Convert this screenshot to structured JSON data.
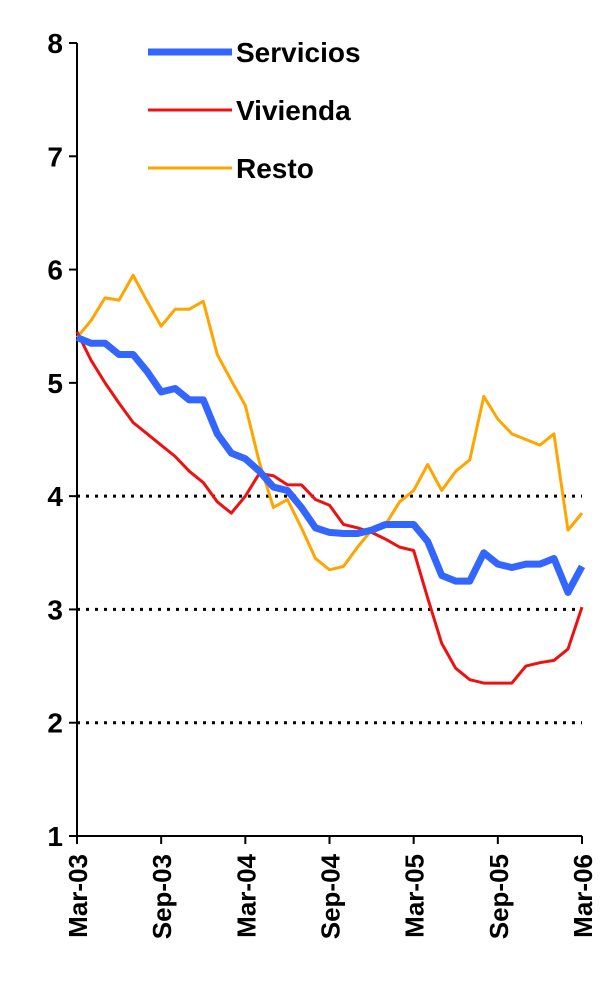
{
  "chart_data": {
    "type": "line",
    "categories": [
      "Mar-03",
      null,
      null,
      null,
      null,
      null,
      "Sep-03",
      null,
      null,
      null,
      null,
      null,
      "Mar-04",
      null,
      null,
      null,
      null,
      null,
      "Sep-04",
      null,
      null,
      null,
      null,
      null,
      "Mar-05",
      null,
      null,
      null,
      null,
      null,
      "Sep-05",
      null,
      null,
      null,
      null,
      null,
      "Mar-06"
    ],
    "series": [
      {
        "name": "Servicios",
        "color": "#3366ff",
        "width": 7,
        "values": [
          5.4,
          5.35,
          5.35,
          5.25,
          5.25,
          5.1,
          4.92,
          4.95,
          4.85,
          4.85,
          4.55,
          4.38,
          4.33,
          4.22,
          4.08,
          4.05,
          3.9,
          3.72,
          3.68,
          3.67,
          3.67,
          3.7,
          3.75,
          3.75,
          3.75,
          3.6,
          3.3,
          3.25,
          3.25,
          3.5,
          3.4,
          3.37,
          3.4,
          3.4,
          3.45,
          3.15,
          3.38
        ]
      },
      {
        "name": "Vivienda",
        "color": "#ee1111",
        "width": 3,
        "values": [
          5.45,
          5.2,
          5.0,
          4.82,
          4.65,
          4.55,
          4.45,
          4.35,
          4.22,
          4.12,
          3.95,
          3.85,
          4.0,
          4.2,
          4.18,
          4.1,
          4.1,
          3.97,
          3.92,
          3.75,
          3.72,
          3.68,
          3.62,
          3.55,
          3.52,
          3.1,
          2.7,
          2.48,
          2.38,
          2.35,
          2.35,
          2.35,
          2.5,
          2.53,
          2.55,
          2.65,
          3.02
        ]
      },
      {
        "name": "Resto",
        "color": "#ffa500",
        "width": 3,
        "values": [
          5.4,
          5.55,
          5.75,
          5.73,
          5.95,
          5.72,
          5.5,
          5.65,
          5.65,
          5.72,
          5.25,
          5.02,
          4.8,
          4.3,
          3.9,
          3.97,
          3.72,
          3.45,
          3.35,
          3.38,
          3.55,
          3.7,
          3.75,
          3.95,
          4.05,
          4.28,
          4.05,
          4.22,
          4.32,
          4.88,
          4.68,
          4.55,
          4.5,
          4.45,
          4.55,
          3.7,
          3.85
        ]
      }
    ],
    "ylim": [
      1,
      8
    ],
    "yticks": [
      1,
      2,
      3,
      4,
      5,
      6,
      7,
      8
    ],
    "dotted_lines": [
      2,
      3,
      4
    ],
    "legend": "top"
  }
}
